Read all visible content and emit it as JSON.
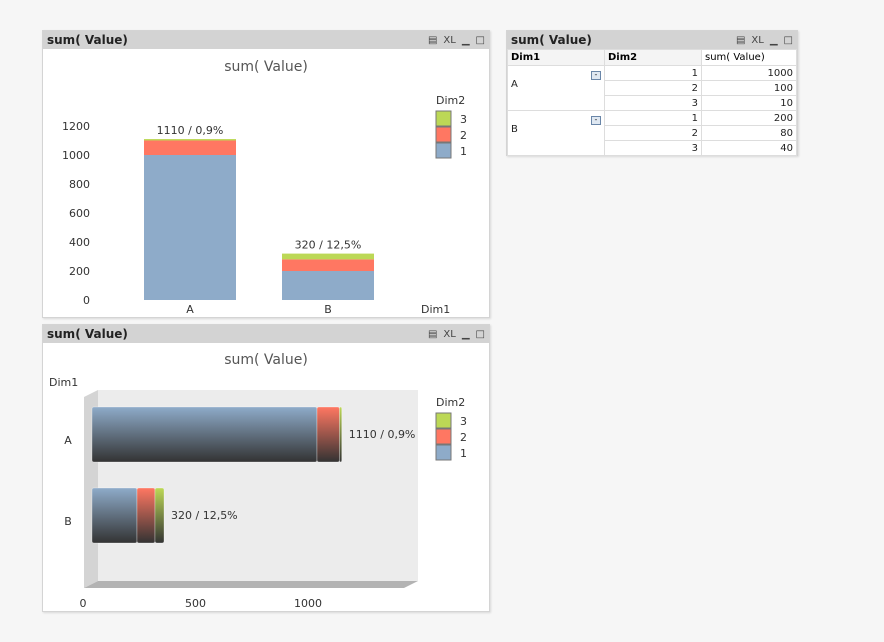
{
  "chart1": {
    "caption": "sum( Value)",
    "title": "sum( Value)",
    "dim_label": "Dim1",
    "legend_title": "Dim2"
  },
  "chart2": {
    "caption": "sum( Value)",
    "title": "sum( Value)",
    "dim_label": "Dim1",
    "legend_title": "Dim2"
  },
  "table": {
    "caption": "sum( Value)",
    "headers": [
      "Dim1",
      "Dim2",
      "sum( Value)"
    ],
    "groups": [
      {
        "dim1": "A",
        "rows": [
          [
            "1",
            "1000"
          ],
          [
            "2",
            "100"
          ],
          [
            "3",
            "10"
          ]
        ]
      },
      {
        "dim1": "B",
        "rows": [
          [
            "1",
            "200"
          ],
          [
            "2",
            "80"
          ],
          [
            "3",
            "40"
          ]
        ]
      }
    ]
  },
  "icons": {
    "print": "print-icon",
    "xl": "XL",
    "minimize": "minimize-icon",
    "maximize": "maximize-icon"
  },
  "chart_data": [
    {
      "type": "bar",
      "orientation": "vertical",
      "stacked": true,
      "title": "sum( Value)",
      "xlabel": "Dim1",
      "ylabel": "",
      "categories": [
        "A",
        "B"
      ],
      "yticks": [
        "0",
        "200",
        "400",
        "600",
        "800",
        "1000",
        "1200"
      ],
      "ylim": [
        0,
        1200
      ],
      "series": [
        {
          "name": "1",
          "values": [
            1000,
            200
          ],
          "color": "#8eabc9"
        },
        {
          "name": "2",
          "values": [
            100,
            80
          ],
          "color": "#ff7762"
        },
        {
          "name": "3",
          "values": [
            10,
            40
          ],
          "color": "#bcd856"
        }
      ],
      "data_labels": [
        "1110 / 0,9%",
        "320 / 12,5%"
      ],
      "legend": "right",
      "legend_order": [
        "3",
        "2",
        "1"
      ]
    },
    {
      "type": "bar",
      "orientation": "horizontal",
      "stacked": true,
      "style": "3d",
      "title": "sum( Value)",
      "ylabel": "Dim1",
      "categories": [
        "A",
        "B"
      ],
      "xticks": [
        "0",
        "500",
        "1000"
      ],
      "series": [
        {
          "name": "1",
          "values": [
            1000,
            200
          ],
          "color": "#8eabc9"
        },
        {
          "name": "2",
          "values": [
            100,
            80
          ],
          "color": "#ff7762"
        },
        {
          "name": "3",
          "values": [
            10,
            40
          ],
          "color": "#bcd856"
        }
      ],
      "data_labels": [
        "1110 / 0,9%",
        "320 / 12,5%"
      ],
      "legend": "right",
      "legend_order": [
        "3",
        "2",
        "1"
      ]
    }
  ]
}
